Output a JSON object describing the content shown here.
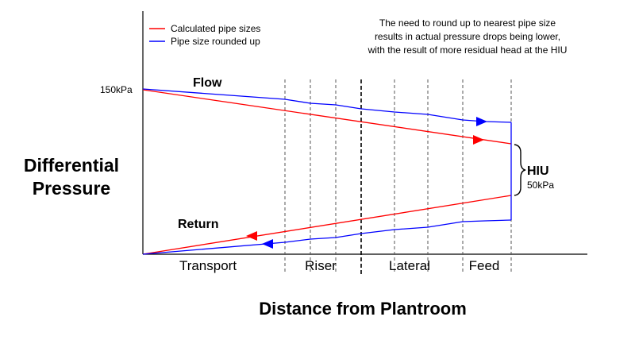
{
  "title_x_axis": "Distance from Plantroom",
  "title_y_axis": [
    "Differential",
    "Pressure"
  ],
  "y_tick": "150kPa",
  "legend": {
    "calculated": {
      "label": "Calculated pipe sizes",
      "color": "#ff0000"
    },
    "rounded": {
      "label": "Pipe size rounded up",
      "color": "#0000ff"
    }
  },
  "note": [
    "The need to round up to nearest pipe size",
    "results in actual pressure drops being lower,",
    "with the result of more residual head at the HIU"
  ],
  "labels": {
    "flow": "Flow",
    "return": "Return",
    "hiu": "HIU",
    "hiu_value": "50kPa"
  },
  "sections": [
    "Transport",
    "Riser",
    "Lateral",
    "Feed"
  ]
}
